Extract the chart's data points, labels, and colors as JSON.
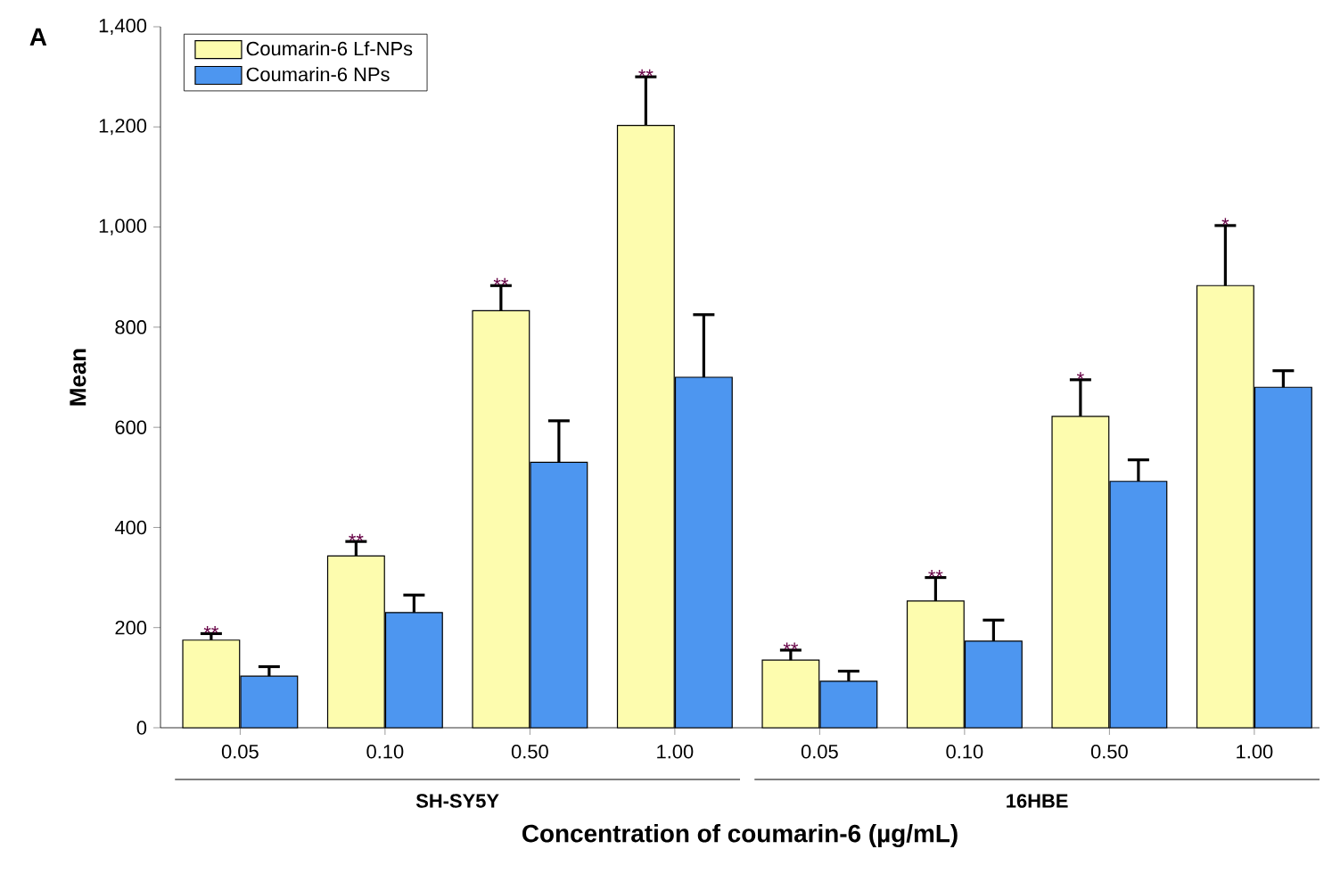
{
  "chart_data": {
    "type": "bar",
    "xlabel": "Concentration of coumarin-6 (µg/mL)",
    "ylabel": "Mean",
    "categories": [
      "0.05",
      "0.10",
      "0.50",
      "1.00",
      "0.05",
      "0.10",
      "0.50",
      "1.00"
    ],
    "series": [
      {
        "name": "Coumarin-6 Lf-NPs",
        "color": "#fdfcae",
        "values": [
          175,
          343,
          833,
          1203,
          135,
          253,
          622,
          883
        ],
        "errors": [
          [
            175,
            188
          ],
          [
            343,
            372
          ],
          [
            833,
            883
          ],
          [
            1203,
            1300
          ],
          [
            135,
            155
          ],
          [
            253,
            300
          ],
          [
            622,
            695
          ],
          [
            883,
            1003
          ]
        ],
        "value_labels": [
          "**",
          "**",
          "**",
          "**",
          "**",
          "**",
          "*",
          "*"
        ]
      },
      {
        "name": "Coumarin-6 NPs",
        "color": "#4d96f0",
        "values": [
          103,
          230,
          530,
          700,
          93,
          173,
          492,
          680
        ],
        "errors": [
          [
            103,
            122
          ],
          [
            230,
            265
          ],
          [
            530,
            613
          ],
          [
            700,
            825
          ],
          [
            93,
            113
          ],
          [
            173,
            215
          ],
          [
            492,
            535
          ],
          [
            680,
            713
          ]
        ]
      }
    ],
    "ylim": [
      0,
      1400
    ],
    "yticks": [
      0,
      200,
      400,
      600,
      800,
      {
        "value": 1000,
        "label": "1,000"
      },
      {
        "value": 1200,
        "label": "1,200"
      },
      {
        "value": 1400,
        "label": "1,400"
      }
    ],
    "annotations": [
      "A",
      "SH-SY5Y",
      "16HBE"
    ],
    "legend": "top left",
    "grid": false
  }
}
